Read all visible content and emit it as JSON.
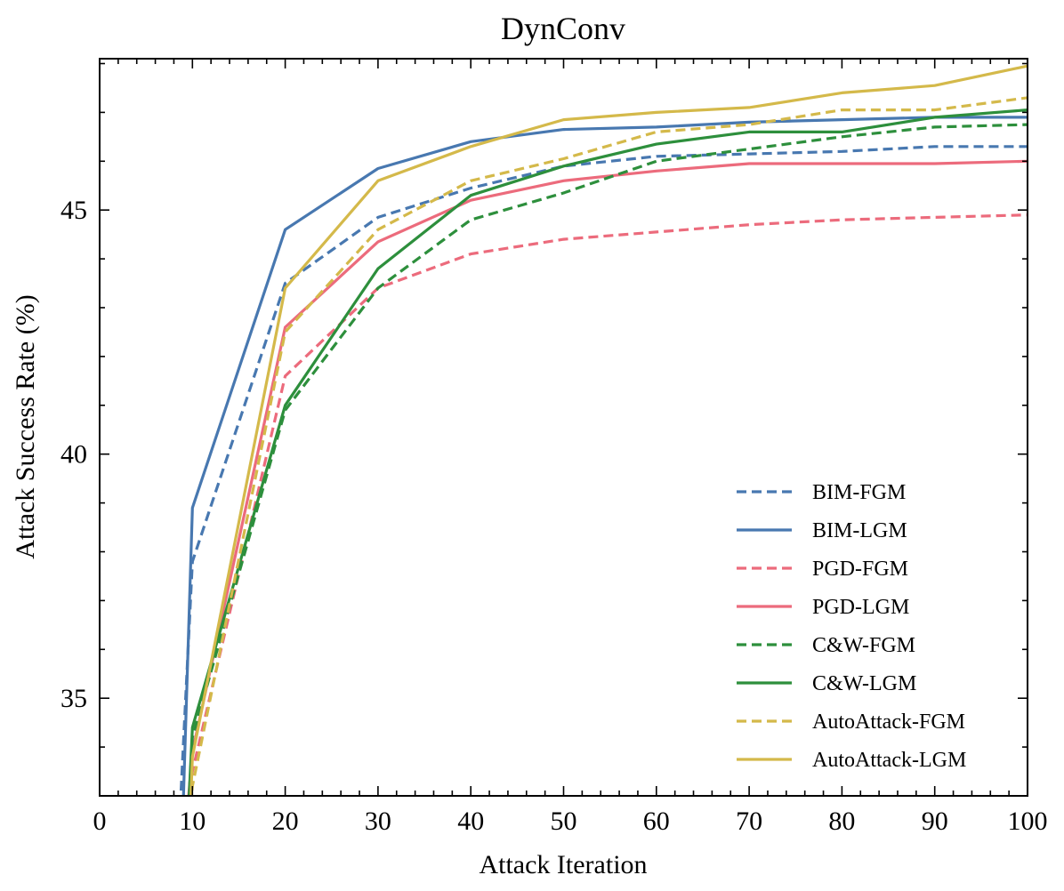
{
  "chart_data": {
    "type": "line",
    "title": "DynConv",
    "xlabel": "Attack Iteration",
    "ylabel": "Attack Success Rate (%)",
    "xlim": [
      0,
      100
    ],
    "ylim": [
      33,
      48.1
    ],
    "xticks": [
      0,
      10,
      20,
      30,
      40,
      50,
      60,
      70,
      80,
      90,
      100
    ],
    "xtick_labels": [
      "0",
      "10",
      "20",
      "30",
      "40",
      "50",
      "60",
      "70",
      "80",
      "90",
      "100"
    ],
    "yticks": [
      35,
      40,
      45
    ],
    "ytick_labels": [
      "35",
      "40",
      "45"
    ],
    "grid": false,
    "legend_position": "lower-right",
    "series": [
      {
        "name": "BIM-FGM",
        "color": "#4878b0",
        "dash": true,
        "points": [
          [
            8.7,
            32.8
          ],
          [
            10,
            37.8
          ],
          [
            20,
            43.5
          ],
          [
            30,
            44.85
          ],
          [
            40,
            45.45
          ],
          [
            50,
            45.9
          ],
          [
            60,
            46.1
          ],
          [
            70,
            46.15
          ],
          [
            80,
            46.2
          ],
          [
            90,
            46.3
          ],
          [
            100,
            46.3
          ]
        ]
      },
      {
        "name": "BIM-LGM",
        "color": "#4878b0",
        "dash": false,
        "points": [
          [
            9,
            32.8
          ],
          [
            10,
            38.9
          ],
          [
            20,
            44.6
          ],
          [
            30,
            45.85
          ],
          [
            40,
            46.4
          ],
          [
            50,
            46.65
          ],
          [
            60,
            46.7
          ],
          [
            70,
            46.8
          ],
          [
            80,
            46.85
          ],
          [
            90,
            46.9
          ],
          [
            100,
            46.9
          ]
        ]
      },
      {
        "name": "PGD-FGM",
        "color": "#ec6b7c",
        "dash": true,
        "points": [
          [
            9.5,
            32.8
          ],
          [
            10,
            33.5
          ],
          [
            20,
            41.6
          ],
          [
            30,
            43.4
          ],
          [
            40,
            44.1
          ],
          [
            50,
            44.4
          ],
          [
            60,
            44.55
          ],
          [
            70,
            44.7
          ],
          [
            80,
            44.8
          ],
          [
            90,
            44.85
          ],
          [
            100,
            44.9
          ]
        ]
      },
      {
        "name": "PGD-LGM",
        "color": "#ec6b7c",
        "dash": false,
        "points": [
          [
            9.5,
            32.8
          ],
          [
            10,
            33.9
          ],
          [
            20,
            42.6
          ],
          [
            30,
            44.35
          ],
          [
            40,
            45.2
          ],
          [
            50,
            45.6
          ],
          [
            60,
            45.8
          ],
          [
            70,
            45.95
          ],
          [
            80,
            45.95
          ],
          [
            90,
            45.95
          ],
          [
            100,
            46.0
          ]
        ]
      },
      {
        "name": "C&W-FGM",
        "color": "#2d8f3c",
        "dash": true,
        "points": [
          [
            9.6,
            32.8
          ],
          [
            10,
            34.2
          ],
          [
            20,
            40.9
          ],
          [
            30,
            43.4
          ],
          [
            40,
            44.8
          ],
          [
            50,
            45.35
          ],
          [
            60,
            46.0
          ],
          [
            70,
            46.25
          ],
          [
            80,
            46.5
          ],
          [
            90,
            46.7
          ],
          [
            100,
            46.75
          ]
        ]
      },
      {
        "name": "C&W-LGM",
        "color": "#2d8f3c",
        "dash": false,
        "points": [
          [
            9.6,
            32.8
          ],
          [
            10,
            34.4
          ],
          [
            20,
            41.0
          ],
          [
            30,
            43.8
          ],
          [
            40,
            45.3
          ],
          [
            50,
            45.9
          ],
          [
            60,
            46.35
          ],
          [
            70,
            46.6
          ],
          [
            80,
            46.6
          ],
          [
            90,
            46.9
          ],
          [
            100,
            47.05
          ]
        ]
      },
      {
        "name": "AutoAttack-FGM",
        "color": "#d4b94a",
        "dash": true,
        "points": [
          [
            9.8,
            32.8
          ],
          [
            10,
            33.2
          ],
          [
            20,
            42.5
          ],
          [
            30,
            44.6
          ],
          [
            40,
            45.6
          ],
          [
            50,
            46.05
          ],
          [
            60,
            46.6
          ],
          [
            70,
            46.75
          ],
          [
            80,
            47.05
          ],
          [
            90,
            47.05
          ],
          [
            100,
            47.3
          ]
        ]
      },
      {
        "name": "AutoAttack-LGM",
        "color": "#d4b94a",
        "dash": false,
        "points": [
          [
            9.8,
            32.8
          ],
          [
            10,
            33.8
          ],
          [
            20,
            43.4
          ],
          [
            30,
            45.6
          ],
          [
            40,
            46.3
          ],
          [
            50,
            46.85
          ],
          [
            60,
            47.0
          ],
          [
            70,
            47.1
          ],
          [
            80,
            47.4
          ],
          [
            90,
            47.55
          ],
          [
            100,
            47.95
          ]
        ]
      }
    ]
  }
}
